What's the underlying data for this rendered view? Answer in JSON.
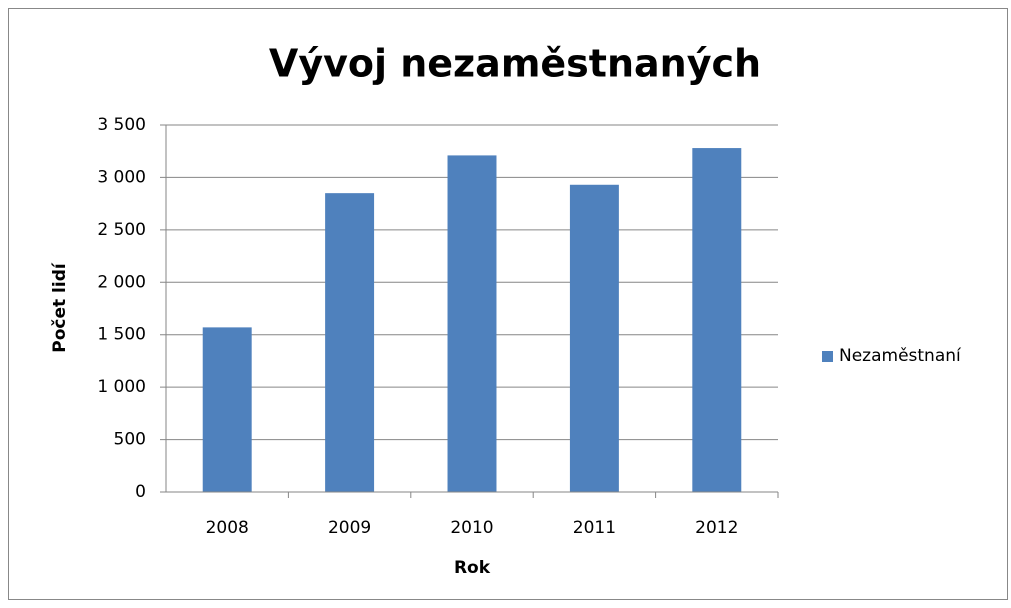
{
  "chart_data": {
    "type": "bar",
    "title": "Vývoj nezaměstnaných",
    "x_label": "Rok",
    "y_label": "Počet lidí",
    "categories": [
      "2008",
      "2009",
      "2010",
      "2011",
      "2012"
    ],
    "series": [
      {
        "name": "Nezaměstnaní",
        "color": "#4f81bd",
        "values": [
          1570,
          2850,
          3210,
          2930,
          3280
        ]
      }
    ],
    "ylim": [
      0,
      3500
    ],
    "yticks": [
      0,
      500,
      {
        "value": 1000,
        "label": "1 000"
      },
      {
        "value": 1500,
        "label": "1 500"
      },
      {
        "value": 2000,
        "label": "2 000"
      },
      {
        "value": 2500,
        "label": "2 500"
      },
      {
        "value": 3000,
        "label": "3 000"
      },
      {
        "value": 3500,
        "label": "3 500"
      }
    ],
    "grid": true,
    "legend": "right"
  }
}
